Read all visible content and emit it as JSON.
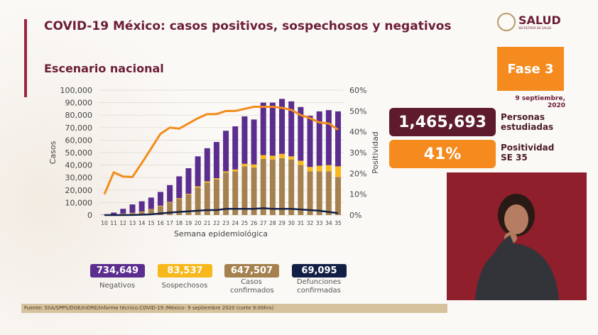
{
  "header": {
    "title": "COVID-19 México: casos positivos, sospechosos y negativos",
    "subtitle": "Escenario nacional",
    "logo_text": "SALUD",
    "logo_subtext": "SECRETARÍA DE SALUD"
  },
  "side": {
    "phase": "Fase 3",
    "date": "9 septiembre, 2020",
    "studied_value": "1,465,693",
    "studied_label": "Personas estudiadas",
    "positivity_value": "41%",
    "positivity_label": "Positividad SE 35"
  },
  "legend": [
    {
      "value": "734,649",
      "label": "Negativos",
      "color": "#5b2d8e"
    },
    {
      "value": "83,537",
      "label": "Sospechosos",
      "color": "#f8b81c"
    },
    {
      "value": "647,507",
      "label": "Casos confirmados",
      "color": "#a5814f"
    },
    {
      "value": "69,095",
      "label": "Defunciones confirmadas",
      "color": "#132046"
    }
  ],
  "footer": "Fuente: SSA/SPPS/DGE/InDRE/Informe técnico.COVID-19 /México- 9 septiembre 2020 (corte 9:00hrs)",
  "chart_data": {
    "type": "bar",
    "stacked": true,
    "xlabel": "Semana epidemiológica",
    "ylabel": "Casos",
    "y2label": "Positividad",
    "ylim": [
      0,
      100000
    ],
    "y2lim": [
      0,
      60
    ],
    "yticks": [
      "0",
      "10,000",
      "20,000",
      "30,000",
      "40,000",
      "50,000",
      "60,000",
      "70,000",
      "80,000",
      "90,000",
      "100,000"
    ],
    "y2ticks": [
      "0%",
      "10%",
      "20%",
      "30%",
      "40%",
      "50%",
      "60%"
    ],
    "grid": true,
    "categories": [
      "10",
      "11",
      "12",
      "13",
      "14",
      "15",
      "16",
      "17",
      "18",
      "19",
      "20",
      "21",
      "22",
      "23",
      "24",
      "25",
      "26",
      "27",
      "28",
      "29",
      "30",
      "31",
      "32",
      "33",
      "34",
      "35"
    ],
    "series": [
      {
        "key": "confirmados",
        "type": "bar",
        "color": "#a5814f",
        "values": [
          100,
          400,
          1000,
          1500,
          2500,
          4500,
          7000,
          10000,
          13000,
          16500,
          22000,
          26000,
          28500,
          34000,
          35000,
          39000,
          38000,
          45000,
          44500,
          45500,
          44500,
          40000,
          35000,
          35000,
          35000,
          30500
        ]
      },
      {
        "key": "sospechosos",
        "type": "bar",
        "color": "#f8b81c",
        "values": [
          0,
          100,
          200,
          300,
          300,
          300,
          500,
          500,
          500,
          500,
          1000,
          1000,
          1000,
          1000,
          1500,
          2000,
          2500,
          3000,
          3000,
          3500,
          2500,
          3500,
          3500,
          4500,
          5000,
          8500
        ]
      },
      {
        "key": "negativos",
        "type": "bar",
        "color": "#5b2d8e",
        "values": [
          200,
          1500,
          3800,
          6700,
          8200,
          9200,
          11000,
          13500,
          17500,
          20500,
          24000,
          26500,
          29000,
          32500,
          34500,
          38000,
          36000,
          42000,
          42500,
          44000,
          44000,
          43000,
          41000,
          43500,
          44000,
          44000
        ]
      },
      {
        "key": "defunciones",
        "type": "line",
        "color": "#132046",
        "values": [
          0,
          0,
          0,
          50,
          300,
          600,
          1300,
          2000,
          2500,
          3000,
          3500,
          4000,
          4000,
          5000,
          5000,
          5000,
          5000,
          5500,
          5000,
          5000,
          5000,
          4500,
          4000,
          3500,
          2500,
          1500
        ]
      },
      {
        "key": "positividad",
        "type": "line",
        "axis": "right",
        "color": "#f28c1c",
        "values": [
          10,
          20.5,
          18.5,
          18.3,
          25,
          32,
          39,
          42,
          41.5,
          44,
          46.5,
          48.5,
          48.5,
          50,
          50,
          51,
          52,
          52,
          52,
          51.5,
          50.5,
          48,
          46.5,
          44.5,
          44,
          41
        ]
      }
    ]
  }
}
